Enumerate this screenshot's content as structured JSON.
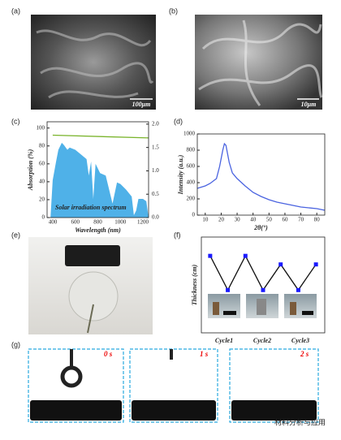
{
  "panels": {
    "labels": [
      "(a)",
      "(b)",
      "(c)",
      "(d)",
      "(e)",
      "(f)",
      "(g)"
    ],
    "scale_bars": [
      "100μm",
      "10μm"
    ],
    "times": [
      "0 s",
      "1 s",
      "2 s"
    ],
    "watermark": "材料分析与应用"
  },
  "chart_data": [
    {
      "type": "area",
      "xlabel": "Wavelength (nm)",
      "ylabel": "Absorption (%)",
      "annotation": "Solar irradiation spectrum",
      "xlim": [
        350,
        1250
      ],
      "xticks": [
        400,
        600,
        800,
        1000,
        1200
      ],
      "ylim": [
        0,
        107
      ],
      "yticks": [
        0,
        20,
        40,
        60,
        80,
        100
      ],
      "y2lim": [
        0,
        2.05
      ],
      "y2ticks": [
        {
          "value": 0,
          "label": "0.0"
        },
        0.5,
        {
          "value": 1,
          "label": "1.0"
        },
        1.5,
        {
          "value": 2,
          "label": "2.0"
        }
      ],
      "series": [
        {
          "color": "#4fb1e8",
          "fill": true,
          "axis": "y2",
          "x": [
            380,
            400,
            430,
            450,
            480,
            500,
            530,
            550,
            600,
            650,
            700,
            720,
            740,
            760,
            780,
            820,
            870,
            900,
            930,
            970,
            1000,
            1050,
            1100,
            1120,
            1140,
            1160,
            1200,
            1230,
            1250
          ],
          "values": [
            0,
            0.8,
            1.2,
            1.45,
            1.6,
            1.55,
            1.45,
            1.5,
            1.45,
            1.35,
            1.25,
            0.9,
            1.2,
            0.4,
            1.15,
            0.95,
            0.9,
            0.6,
            0.3,
            0.75,
            0.72,
            0.6,
            0.45,
            0.05,
            0.15,
            0.4,
            0.4,
            0.35,
            0
          ]
        },
        {
          "color": "#7ab42c",
          "fill": false,
          "x": [
            400,
            1250
          ],
          "values": [
            92,
            89
          ]
        }
      ]
    },
    {
      "type": "line",
      "xlabel": "2θ(°)",
      "ylabel": "Intensity (a.u.)",
      "xlim": [
        5,
        85
      ],
      "xticks": [
        10,
        20,
        30,
        40,
        50,
        60,
        70,
        80
      ],
      "ylim": [
        0,
        1000
      ],
      "yticks": [
        0,
        200,
        400,
        600,
        800,
        1000
      ],
      "series": [
        {
          "color": "#4a63e0",
          "fill": false,
          "x": [
            5,
            10,
            13,
            17,
            19,
            21,
            22,
            23,
            25,
            27,
            30,
            35,
            40,
            45,
            50,
            55,
            60,
            65,
            70,
            75,
            80,
            85
          ],
          "values": [
            330,
            360,
            390,
            450,
            600,
            800,
            880,
            860,
            650,
            520,
            450,
            360,
            280,
            230,
            190,
            160,
            140,
            120,
            100,
            90,
            80,
            60
          ]
        }
      ]
    },
    {
      "type": "line",
      "ylabel": "Thickness (cm)",
      "markers": true,
      "annotations": [
        "Cycle1",
        "Cycle2",
        "Cycle3"
      ],
      "categories": [
        null,
        null,
        null,
        null,
        null,
        null,
        null
      ],
      "ylim": [
        0,
        1.12
      ],
      "series": [
        {
          "color": "#111111",
          "marker_color": "#1a1aff",
          "fill": false,
          "values": [
            0.9,
            0.5,
            0.9,
            0.5,
            0.8,
            0.5,
            0.8
          ]
        }
      ]
    }
  ]
}
